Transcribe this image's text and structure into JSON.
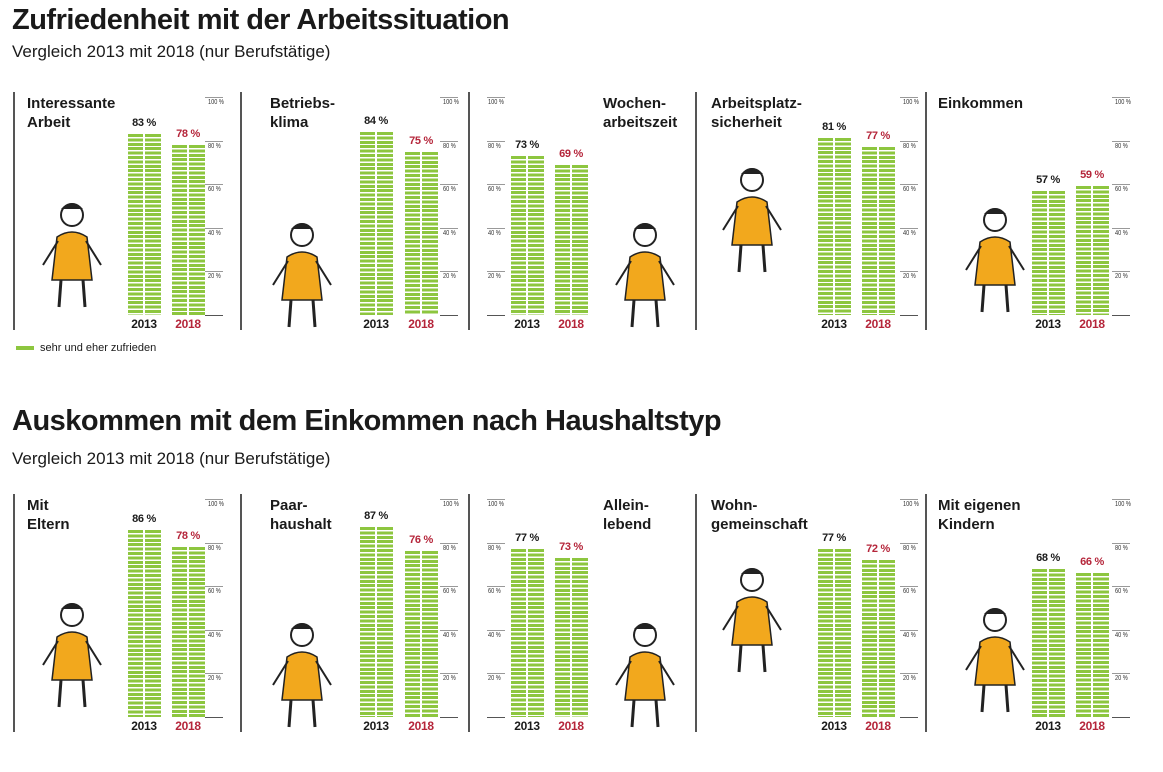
{
  "chart_data": [
    {
      "type": "bar",
      "title": "Zufriedenheit mit der Arbeitssituation",
      "subtitle": "Vergleich 2013 mit 2018 (nur Berufstätige)",
      "categories": [
        "2013",
        "2018"
      ],
      "ylim": [
        0,
        100
      ],
      "yticks": [
        "100 %",
        "80 %",
        "60 %",
        "40 %",
        "20 %"
      ],
      "legend": {
        "label": "sehr und eher zufrieden",
        "color": "#8dc63f",
        "placement": "bottom-left"
      },
      "panels": [
        {
          "title": "Interessante\nArbeit",
          "values": [
            83,
            78
          ],
          "labels": [
            "83 %",
            "78 %"
          ],
          "icon": "cheering-woman-laptop-illustration"
        },
        {
          "title": "Betriebs-\nklima",
          "values": [
            84,
            75
          ],
          "labels": [
            "84 %",
            "75 %"
          ],
          "icon": "video-call-team-illustration"
        },
        {
          "title": "Wochen-\narbeitszeit",
          "values": [
            73,
            69
          ],
          "labels": [
            "73 %",
            "69 %"
          ],
          "icon": "relaxing-man-clock-illustration"
        },
        {
          "title": "Arbeitsplatz-\nsicherheit",
          "values": [
            81,
            77
          ],
          "labels": [
            "81 %",
            "77 %"
          ],
          "icon": "ladder-telescope-illustration"
        },
        {
          "title": "Einkommen",
          "values": [
            57,
            59
          ],
          "labels": [
            "57 %",
            "59 %"
          ],
          "icon": "woman-holding-card-illustration"
        }
      ]
    },
    {
      "type": "bar",
      "title": "Auskommen mit dem Einkommen nach Haushaltstyp",
      "subtitle": "Vergleich 2013 mit 2018 (nur Berufstätige)",
      "categories": [
        "2013",
        "2018"
      ],
      "ylim": [
        0,
        100
      ],
      "yticks": [
        "100 %",
        "80 %",
        "60 %",
        "40 %",
        "20 %"
      ],
      "panels": [
        {
          "title": "Mit\nEltern",
          "values": [
            86,
            78
          ],
          "labels": [
            "86 %",
            "78 %"
          ],
          "icon": "family-faces-illustration"
        },
        {
          "title": "Paar-\nhaushalt",
          "values": [
            87,
            76
          ],
          "labels": [
            "87 %",
            "76 %"
          ],
          "icon": "proposal-couple-illustration"
        },
        {
          "title": "Allein-\nlebend",
          "values": [
            77,
            73
          ],
          "labels": [
            "77 %",
            "73 %"
          ],
          "icon": "woman-reading-armchair-illustration"
        },
        {
          "title": "Wohn-\ngemeinschaft",
          "values": [
            77,
            72
          ],
          "labels": [
            "77 %",
            "72 %"
          ],
          "icon": "group-selfie-illustration"
        },
        {
          "title": "Mit eigenen\nKindern",
          "values": [
            68,
            66
          ],
          "labels": [
            "68 %",
            "66 %"
          ],
          "icon": "family-with-dog-illustration"
        }
      ]
    }
  ],
  "colors": {
    "bar": "#8dc63f",
    "label_2013": "#1a1a1a",
    "label_2018": "#b5253a"
  }
}
